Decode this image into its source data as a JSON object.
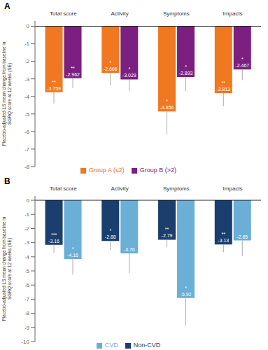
{
  "chart_data": [
    {
      "type": "bar",
      "title": "A",
      "categories": [
        "Total score",
        "Activity",
        "Symptoms",
        "Impacts"
      ],
      "series": [
        {
          "name": "Group A (≤2)",
          "color": "#F07820",
          "values": [
            -3.759,
            -2.666,
            -4.856,
            -3.813
          ],
          "errors": [
            0.65,
            0.7,
            1.3,
            0.75
          ],
          "stars": [
            "**",
            "*",
            "*",
            "**"
          ]
        },
        {
          "name": "Group B (>2)",
          "color": "#7B2080",
          "values": [
            -2.962,
            -3.029,
            -2.893,
            -2.467
          ],
          "errors": [
            0.55,
            0.65,
            0.8,
            0.6
          ],
          "stars": [
            "**",
            "*",
            "*",
            "*"
          ]
        }
      ],
      "ylabel": "Placebo-adjusted LS mean change from baseline in\nSGRQ score at 12 weeks (SE)",
      "ylim": [
        -8,
        0.3
      ],
      "yticks": [
        0,
        -1,
        -2,
        -3,
        -4,
        -5,
        -6,
        -7,
        -8
      ],
      "grid": false,
      "data_labels": true,
      "legend": "bottom"
    },
    {
      "type": "bar",
      "title": "B",
      "categories": [
        "Total score",
        "Activity",
        "Symptoms",
        "Impacts"
      ],
      "series": [
        {
          "name": "Non-CVD",
          "color": "#1A3F6F",
          "values": [
            -3.16,
            -2.88,
            -2.79,
            -3.13
          ],
          "errors": [
            0.55,
            0.65,
            0.55,
            0.55
          ],
          "stars": [
            "***",
            "*",
            "**",
            "**"
          ]
        },
        {
          "name": "CVD",
          "color": "#6BAED6",
          "values": [
            -4.16,
            -3.76,
            -6.92,
            -2.85
          ],
          "errors": [
            1.1,
            1.4,
            1.95,
            1.1
          ],
          "stars": [
            "*",
            null,
            "*",
            null
          ]
        }
      ],
      "ylabel": "Placebo-adjusted LS mean change from baseline in\nSGRQ score at 12 weeks (SE)",
      "ylim": [
        -10,
        0.3
      ],
      "yticks": [
        0,
        -1,
        -2,
        -3,
        -4,
        -5,
        -6,
        -7,
        -8,
        -9,
        -10
      ],
      "grid": false,
      "data_labels": true,
      "legend": "bottom"
    }
  ]
}
